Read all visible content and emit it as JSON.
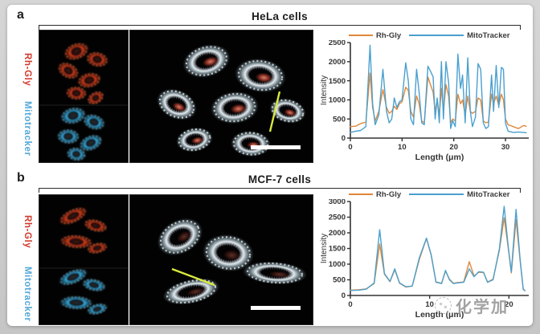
{
  "figure": {
    "watermark": {
      "text": "化学加",
      "icon": "dashed-circle-logo"
    },
    "panels": [
      {
        "letter": "a",
        "title": "HeLa cells",
        "row_labels": [
          {
            "text": "Rh-Gly",
            "color": "#d23a2e"
          },
          {
            "text": "Mitotracker",
            "color": "#55a8d8"
          }
        ],
        "image_annotations": {
          "line_scan_color": "#d9e93f",
          "scale_bar_color": "#ffffff"
        }
      },
      {
        "letter": "b",
        "title": "MCF-7 cells",
        "row_labels": [
          {
            "text": "Rh-Gly",
            "color": "#d23a2e"
          },
          {
            "text": "Mitotracker",
            "color": "#55a8d8"
          }
        ],
        "image_annotations": {
          "line_scan_color": "#d9e93f",
          "scale_bar_color": "#ffffff"
        }
      }
    ]
  },
  "chart_data": [
    {
      "type": "line",
      "panel": "a",
      "title": "HeLa cells intensity profile",
      "xlabel": "Length (μm)",
      "ylabel": "Intensity",
      "xlim": [
        0,
        34.5
      ],
      "ylim": [
        0,
        2500
      ],
      "xticks": [
        0,
        10,
        20,
        30
      ],
      "yticks": [
        0,
        500,
        1000,
        1500,
        2000,
        2500
      ],
      "grid": false,
      "legend_position": "top",
      "x": [
        0,
        1,
        2,
        3,
        3.8,
        4.3,
        4.8,
        5.5,
        6.3,
        7,
        7.5,
        8,
        8.5,
        9,
        9.5,
        10,
        10.7,
        11.2,
        11.7,
        12.2,
        12.8,
        13.3,
        13.8,
        14.3,
        15,
        15.5,
        16,
        16.4,
        16.8,
        17.2,
        17.6,
        18,
        18.5,
        19,
        19.4,
        19.8,
        20.3,
        20.8,
        21.3,
        21.7,
        22.2,
        22.7,
        23.2,
        23.6,
        24.2,
        24.7,
        25.2,
        25.7,
        26.2,
        26.7,
        27.3,
        27.7,
        28.2,
        28.7,
        29.2,
        29.6,
        30,
        30.5,
        31.5,
        32.5,
        33.5,
        34
      ],
      "series": [
        {
          "name": "Rh-Gly",
          "color": "#e0873a",
          "y": [
            300,
            310,
            380,
            420,
            1700,
            800,
            450,
            700,
            1270,
            800,
            650,
            700,
            830,
            750,
            900,
            950,
            1330,
            1250,
            700,
            550,
            1100,
            900,
            450,
            400,
            1600,
            1400,
            1200,
            700,
            1000,
            600,
            1300,
            700,
            1400,
            1100,
            400,
            500,
            450,
            1150,
            900,
            1000,
            600,
            1100,
            700,
            650,
            700,
            1050,
            1000,
            450,
            400,
            420,
            1150,
            900,
            1100,
            850,
            1150,
            1000,
            500,
            350,
            300,
            250,
            330,
            310
          ]
        },
        {
          "name": "MitoTracker",
          "color": "#4aa0cf",
          "y": [
            150,
            180,
            200,
            300,
            2430,
            900,
            350,
            600,
            1800,
            700,
            400,
            500,
            1050,
            800,
            950,
            1000,
            1970,
            1500,
            500,
            350,
            1800,
            1200,
            400,
            350,
            1880,
            1750,
            1600,
            500,
            1050,
            400,
            2000,
            500,
            2000,
            1450,
            250,
            450,
            300,
            2200,
            1300,
            1650,
            400,
            2100,
            700,
            300,
            550,
            1950,
            1800,
            400,
            250,
            300,
            1650,
            700,
            1900,
            800,
            1850,
            1800,
            400,
            180,
            150,
            160,
            150,
            140
          ]
        }
      ]
    },
    {
      "type": "line",
      "panel": "b",
      "title": "MCF-7 cells intensity profile",
      "xlabel": "Length (μm)",
      "ylabel": "Intensity",
      "xlim": [
        0,
        22.5
      ],
      "ylim": [
        0,
        3000
      ],
      "xticks": [
        0,
        10,
        20
      ],
      "yticks": [
        0,
        500,
        1000,
        1500,
        2000,
        2500,
        3000
      ],
      "grid": false,
      "legend_position": "top",
      "x": [
        0,
        1,
        2,
        3,
        3.7,
        4.3,
        5,
        5.6,
        6.2,
        7,
        7.8,
        8.7,
        9.6,
        10.2,
        10.8,
        11.5,
        12,
        12.5,
        13,
        13.5,
        14.3,
        15,
        15.6,
        16.2,
        16.8,
        17.3,
        18,
        18.8,
        19.4,
        19.9,
        20.3,
        20.9,
        21.4,
        21.8,
        22
      ],
      "series": [
        {
          "name": "Rh-Gly",
          "color": "#e0873a",
          "y": [
            170,
            180,
            210,
            380,
            1640,
            680,
            440,
            820,
            390,
            270,
            300,
            1150,
            1820,
            1280,
            430,
            390,
            780,
            520,
            390,
            410,
            430,
            1080,
            620,
            740,
            730,
            430,
            520,
            1450,
            2480,
            1550,
            720,
            2420,
            1150,
            210,
            160
          ]
        },
        {
          "name": "MitoTracker",
          "color": "#4aa0cf",
          "y": [
            160,
            170,
            200,
            400,
            2100,
            700,
            450,
            850,
            400,
            280,
            300,
            1200,
            1830,
            1300,
            420,
            380,
            800,
            500,
            380,
            400,
            420,
            850,
            600,
            760,
            740,
            420,
            500,
            1500,
            2850,
            1600,
            750,
            2750,
            1200,
            200,
            150
          ]
        }
      ]
    }
  ]
}
